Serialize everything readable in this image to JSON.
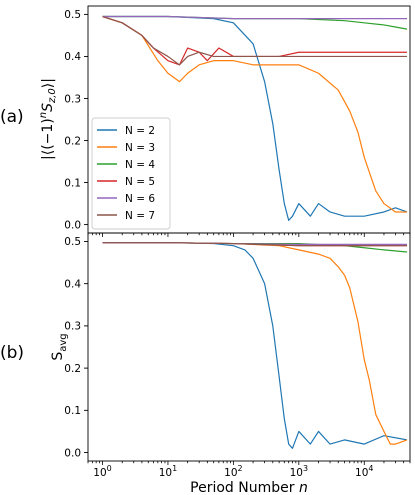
{
  "chart_data": [
    {
      "panel_label": "(a)",
      "type": "line",
      "ylabel_parts": [
        "|⟨(−1)",
        "n",
        "S",
        "z,0",
        "⟩|"
      ],
      "xscale": "log",
      "xlim": [
        0.6,
        50000
      ],
      "ylim": [
        -0.02,
        0.52
      ],
      "yticks": [
        "0.0",
        "0.1",
        "0.2",
        "0.3",
        "0.4",
        "0.5"
      ],
      "legend": {
        "placement": "lower-left"
      },
      "series": [
        {
          "name": "N = 2",
          "color": "#1f77b4",
          "x": [
            1,
            10,
            50,
            100,
            200,
            300,
            400,
            500,
            600,
            700,
            800,
            1000,
            1500,
            2000,
            3000,
            5000,
            10000,
            20000,
            30000,
            45000
          ],
          "y": [
            0.495,
            0.495,
            0.49,
            0.48,
            0.43,
            0.34,
            0.24,
            0.13,
            0.05,
            0.01,
            0.02,
            0.05,
            0.02,
            0.05,
            0.03,
            0.02,
            0.02,
            0.03,
            0.04,
            0.03
          ]
        },
        {
          "name": "N = 3",
          "color": "#ff7f0e",
          "x": [
            1,
            2,
            4,
            7,
            10,
            15,
            20,
            30,
            50,
            100,
            200,
            500,
            1000,
            2000,
            4000,
            6000,
            8000,
            10000,
            15000,
            20000,
            30000,
            45000
          ],
          "y": [
            0.495,
            0.48,
            0.45,
            0.39,
            0.36,
            0.34,
            0.36,
            0.38,
            0.39,
            0.39,
            0.38,
            0.38,
            0.38,
            0.36,
            0.32,
            0.27,
            0.22,
            0.16,
            0.08,
            0.05,
            0.03,
            0.03
          ]
        },
        {
          "name": "N = 4",
          "color": "#2ca02c",
          "x": [
            1,
            10,
            100,
            1000,
            5000,
            10000,
            20000,
            30000,
            45000
          ],
          "y": [
            0.495,
            0.495,
            0.49,
            0.49,
            0.485,
            0.48,
            0.475,
            0.47,
            0.465
          ]
        },
        {
          "name": "N = 5",
          "color": "#d62728",
          "x": [
            1,
            2,
            4,
            6,
            10,
            15,
            20,
            30,
            40,
            60,
            100,
            200,
            500,
            1000,
            5000,
            10000,
            45000
          ],
          "y": [
            0.495,
            0.48,
            0.45,
            0.42,
            0.39,
            0.38,
            0.42,
            0.41,
            0.39,
            0.42,
            0.4,
            0.4,
            0.4,
            0.41,
            0.41,
            0.41,
            0.41
          ]
        },
        {
          "name": "N = 6",
          "color": "#9467bd",
          "x": [
            1,
            10,
            100,
            1000,
            5000,
            10000,
            20000,
            45000
          ],
          "y": [
            0.495,
            0.495,
            0.49,
            0.49,
            0.49,
            0.49,
            0.49,
            0.49
          ]
        },
        {
          "name": "N = 7",
          "color": "#8c564b",
          "x": [
            1,
            2,
            4,
            6,
            10,
            15,
            20,
            30,
            50,
            100,
            200,
            500,
            1000,
            5000,
            10000,
            45000
          ],
          "y": [
            0.495,
            0.48,
            0.45,
            0.42,
            0.4,
            0.38,
            0.4,
            0.41,
            0.4,
            0.4,
            0.4,
            0.4,
            0.4,
            0.4,
            0.4,
            0.4
          ]
        }
      ]
    },
    {
      "panel_label": "(b)",
      "type": "line",
      "ylabel_parts": [
        "S",
        "avg"
      ],
      "xlabel_parts": [
        "Period Number ",
        "n"
      ],
      "xscale": "log",
      "xlim": [
        0.6,
        50000
      ],
      "ylim": [
        -0.02,
        0.52
      ],
      "xticks": [
        {
          "value": 1,
          "base": "10",
          "exp": "0"
        },
        {
          "value": 10,
          "base": "10",
          "exp": "1"
        },
        {
          "value": 100,
          "base": "10",
          "exp": "2"
        },
        {
          "value": 1000,
          "base": "10",
          "exp": "3"
        },
        {
          "value": 10000,
          "base": "10",
          "exp": "4"
        }
      ],
      "yticks": [
        "0.0",
        "0.1",
        "0.2",
        "0.3",
        "0.4",
        "0.5"
      ],
      "series": [
        {
          "name": "N = 2",
          "color": "#1f77b4",
          "x": [
            1,
            10,
            50,
            100,
            150,
            200,
            300,
            400,
            500,
            600,
            700,
            800,
            1000,
            1500,
            2000,
            3000,
            5000,
            10000,
            20000,
            45000
          ],
          "y": [
            0.497,
            0.497,
            0.495,
            0.49,
            0.48,
            0.46,
            0.4,
            0.3,
            0.18,
            0.08,
            0.02,
            0.01,
            0.05,
            0.02,
            0.05,
            0.02,
            0.03,
            0.02,
            0.04,
            0.03
          ]
        },
        {
          "name": "N = 3",
          "color": "#ff7f0e",
          "x": [
            1,
            10,
            100,
            500,
            1000,
            2000,
            3000,
            4000,
            5000,
            6000,
            8000,
            10000,
            12000,
            15000,
            20000,
            25000,
            30000,
            45000
          ],
          "y": [
            0.497,
            0.497,
            0.495,
            0.49,
            0.48,
            0.47,
            0.46,
            0.44,
            0.42,
            0.39,
            0.31,
            0.22,
            0.17,
            0.09,
            0.05,
            0.02,
            0.02,
            0.03
          ]
        },
        {
          "name": "N = 4",
          "color": "#2ca02c",
          "x": [
            1,
            10,
            100,
            1000,
            5000,
            10000,
            20000,
            45000
          ],
          "y": [
            0.497,
            0.497,
            0.495,
            0.495,
            0.49,
            0.485,
            0.48,
            0.475
          ]
        },
        {
          "name": "N = 5",
          "color": "#d62728",
          "x": [
            1,
            10,
            100,
            1000,
            10000,
            45000
          ],
          "y": [
            0.497,
            0.497,
            0.495,
            0.49,
            0.49,
            0.49
          ]
        },
        {
          "name": "N = 6",
          "color": "#9467bd",
          "x": [
            1,
            10,
            100,
            1000,
            10000,
            45000
          ],
          "y": [
            0.497,
            0.497,
            0.495,
            0.493,
            0.493,
            0.493
          ]
        },
        {
          "name": "N = 7",
          "color": "#8c564b",
          "x": [
            1,
            10,
            100,
            1000,
            10000,
            45000
          ],
          "y": [
            0.497,
            0.497,
            0.495,
            0.49,
            0.49,
            0.49
          ]
        }
      ]
    }
  ]
}
